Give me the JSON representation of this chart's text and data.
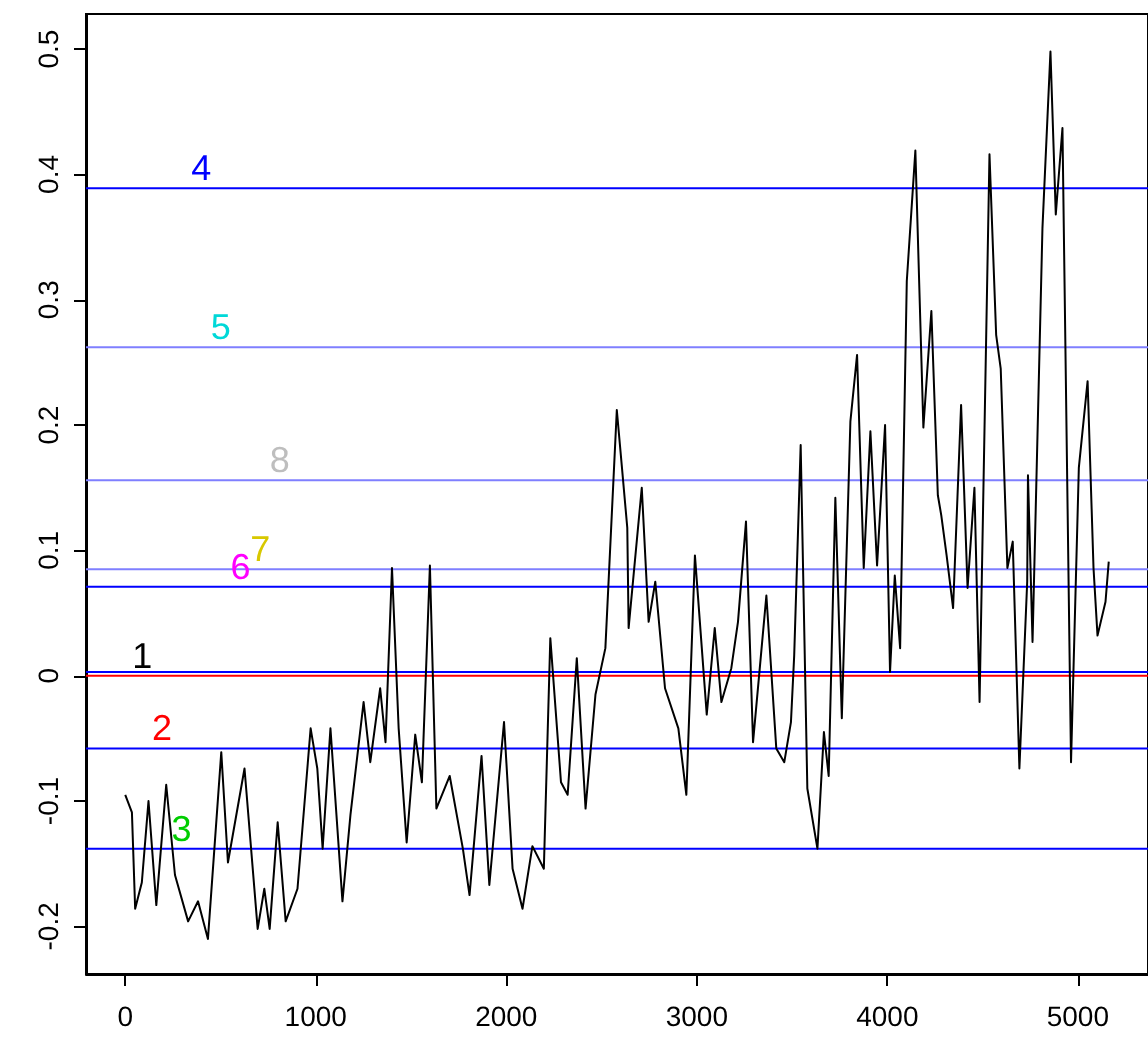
{
  "chart_data": {
    "type": "line",
    "xlim": [
      -206,
      5368
    ],
    "ylim": [
      -0.238,
      0.528
    ],
    "xticks": [
      0,
      1000,
      2000,
      3000,
      4000,
      5000
    ],
    "yticks": [
      -0.2,
      -0.1,
      0.0,
      0.1,
      0.2,
      0.3,
      0.4,
      0.5
    ],
    "grid": false,
    "marker": "none",
    "line_style": "solid",
    "series": [
      {
        "color": "#000000",
        "x": [
          0,
          35,
          52,
          87,
          122,
          163,
          215,
          261,
          330,
          382,
          434,
          504,
          539,
          626,
          695,
          730,
          758,
          800,
          842,
          904,
          973,
          1008,
          1036,
          1077,
          1140,
          1182,
          1251,
          1286,
          1338,
          1366,
          1400,
          1435,
          1477,
          1522,
          1557,
          1599,
          1633,
          1703,
          1772,
          1807,
          1870,
          1911,
          1988,
          2033,
          2085,
          2137,
          2197,
          2231,
          2287,
          2322,
          2370,
          2416,
          2468,
          2520,
          2580,
          2607,
          2635,
          2642,
          2711,
          2747,
          2782,
          2833,
          2903,
          2945,
          2990,
          3052,
          3094,
          3129,
          3181,
          3216,
          3258,
          3295,
          3365,
          3417,
          3459,
          3494,
          3511,
          3545,
          3580,
          3633,
          3667,
          3692,
          3727,
          3761,
          3806,
          3841,
          3876,
          3911,
          3946,
          3988,
          4014,
          4039,
          4067,
          4102,
          4147,
          4189,
          4231,
          4265,
          4283,
          4311,
          4345,
          4387,
          4421,
          4457,
          4484,
          4536,
          4571,
          4595,
          4630,
          4658,
          4693,
          4734,
          4738,
          4762,
          4814,
          4856,
          4884,
          4919,
          4964,
          5005,
          5051,
          5082,
          5103,
          5145,
          5162
        ],
        "values": [
          -0.095,
          -0.109,
          -0.186,
          -0.165,
          -0.1,
          -0.183,
          -0.087,
          -0.159,
          -0.196,
          -0.18,
          -0.21,
          -0.061,
          -0.149,
          -0.074,
          -0.202,
          -0.17,
          -0.202,
          -0.117,
          -0.196,
          -0.17,
          -0.042,
          -0.074,
          -0.138,
          -0.042,
          -0.18,
          -0.111,
          -0.021,
          -0.069,
          -0.01,
          -0.053,
          0.086,
          -0.042,
          -0.133,
          -0.047,
          -0.085,
          0.088,
          -0.106,
          -0.08,
          -0.138,
          -0.175,
          -0.064,
          -0.167,
          -0.037,
          -0.154,
          -0.186,
          -0.136,
          -0.154,
          0.03,
          -0.085,
          -0.095,
          0.014,
          -0.106,
          -0.015,
          0.022,
          0.212,
          0.166,
          0.118,
          0.038,
          0.15,
          0.043,
          0.075,
          -0.01,
          -0.042,
          -0.095,
          0.096,
          -0.031,
          0.038,
          -0.021,
          0.006,
          0.043,
          0.123,
          -0.053,
          0.064,
          -0.058,
          -0.069,
          -0.037,
          0.016,
          0.184,
          -0.09,
          -0.138,
          -0.045,
          -0.08,
          0.142,
          -0.034,
          0.203,
          0.256,
          0.086,
          0.195,
          0.088,
          0.2,
          0.003,
          0.08,
          0.022,
          0.315,
          0.419,
          0.198,
          0.291,
          0.144,
          0.128,
          0.096,
          0.054,
          0.216,
          0.07,
          0.15,
          -0.021,
          0.416,
          0.272,
          0.245,
          0.086,
          0.107,
          -0.074,
          0.075,
          0.16,
          0.027,
          0.357,
          0.498,
          0.368,
          0.437,
          -0.069,
          0.166,
          0.235,
          0.086,
          0.032,
          0.059,
          0.091
        ]
      }
    ],
    "ref_lines": [
      {
        "axis": "y",
        "value": 0.0,
        "color": "#ff0000"
      },
      {
        "axis": "y",
        "value": -0.058,
        "color": "#0000ff"
      },
      {
        "axis": "y",
        "value": -0.138,
        "color": "#0000ff"
      },
      {
        "axis": "y",
        "value": 0.389,
        "color": "#0000ff"
      },
      {
        "axis": "y",
        "value": 0.262,
        "color": "#7f7fff"
      },
      {
        "axis": "y",
        "value": 0.071,
        "color": "#0000ff"
      },
      {
        "axis": "y",
        "value": 0.085,
        "color": "#7f7fff"
      },
      {
        "axis": "y",
        "value": 0.156,
        "color": "#7f7fff"
      },
      {
        "axis": "y",
        "value": 0.003,
        "color": "#0000ff"
      }
    ],
    "annotations": [
      "1",
      "2",
      "3",
      "4",
      "5",
      "6",
      "7",
      "8"
    ]
  }
}
